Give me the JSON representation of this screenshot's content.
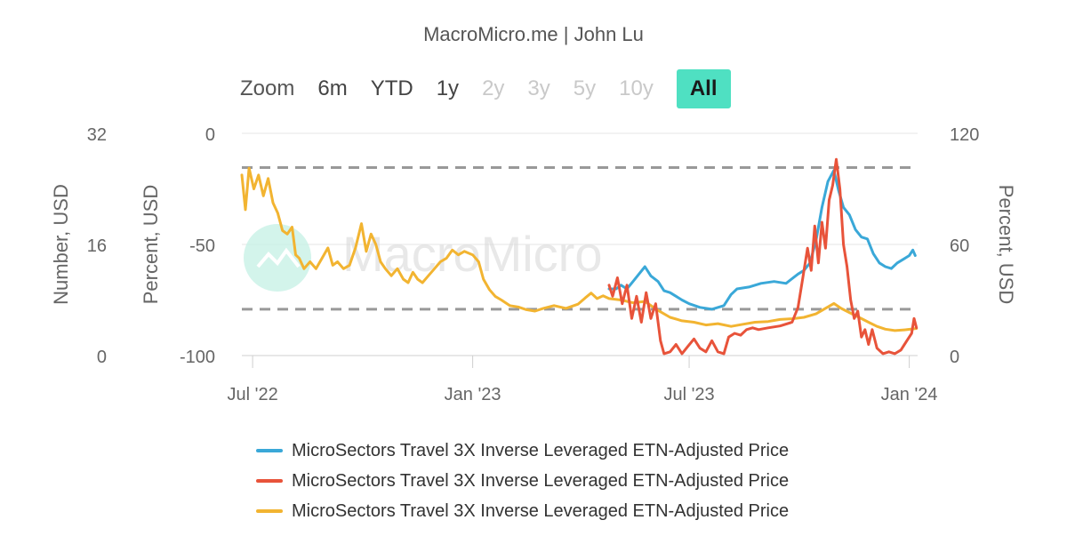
{
  "header": {
    "credit": "MacroMicro.me | John Lu"
  },
  "zoom": {
    "label": "Zoom",
    "buttons": [
      {
        "label": "6m",
        "state": "enabled"
      },
      {
        "label": "YTD",
        "state": "enabled"
      },
      {
        "label": "1y",
        "state": "enabled"
      },
      {
        "label": "2y",
        "state": "disabled"
      },
      {
        "label": "3y",
        "state": "disabled"
      },
      {
        "label": "5y",
        "state": "disabled"
      },
      {
        "label": "10y",
        "state": "disabled"
      },
      {
        "label": "All",
        "state": "active"
      }
    ]
  },
  "watermark": {
    "text": "MacroMicro"
  },
  "colors": {
    "blue": "#3aa8d8",
    "red": "#e8533a",
    "yellow": "#f2b431",
    "grid": "#e6e6e6",
    "dashed": "#999999",
    "accent": "#4fe0c2"
  },
  "chart_data": {
    "type": "line",
    "x_ticks": [
      "Jul '22",
      "Jan '23",
      "Jul '23",
      "Jan '24"
    ],
    "x_tick_dates": [
      "2022-07-01",
      "2023-01-01",
      "2023-07-01",
      "2024-01-01"
    ],
    "x_range": [
      "2022-06-22",
      "2024-01-08"
    ],
    "axes": {
      "left_outer": {
        "title": "Number, USD",
        "range": [
          0,
          32
        ],
        "ticks": [
          32,
          16,
          0
        ]
      },
      "left_inner": {
        "title": "Percent, USD",
        "range": [
          -100,
          0
        ],
        "ticks": [
          0,
          -50,
          -100
        ]
      },
      "right": {
        "title": "Percent, USD",
        "range": [
          0,
          120
        ],
        "ticks": [
          120,
          60,
          0
        ]
      }
    },
    "dashed_lines": [
      {
        "axis": "right",
        "value": 101.5
      },
      {
        "axis": "right",
        "value": 25
      }
    ],
    "series": [
      {
        "name": "MicroSectors Travel 3X Inverse Leveraged ETN-Adjusted Price",
        "color": "#3aa8d8",
        "axis": "right",
        "points": [
          [
            "2023-04-25",
            36
          ],
          [
            "2023-05-01",
            36
          ],
          [
            "2023-05-05",
            38
          ],
          [
            "2023-05-10",
            36
          ],
          [
            "2023-05-15",
            40
          ],
          [
            "2023-05-20",
            44
          ],
          [
            "2023-05-25",
            48
          ],
          [
            "2023-05-30",
            43
          ],
          [
            "2023-06-05",
            40
          ],
          [
            "2023-06-10",
            35
          ],
          [
            "2023-06-15",
            34
          ],
          [
            "2023-06-20",
            32
          ],
          [
            "2023-06-25",
            30
          ],
          [
            "2023-07-01",
            28
          ],
          [
            "2023-07-10",
            26
          ],
          [
            "2023-07-20",
            25
          ],
          [
            "2023-07-30",
            27
          ],
          [
            "2023-08-05",
            33
          ],
          [
            "2023-08-10",
            36
          ],
          [
            "2023-08-20",
            37
          ],
          [
            "2023-08-30",
            39
          ],
          [
            "2023-09-10",
            40
          ],
          [
            "2023-09-20",
            39
          ],
          [
            "2023-09-30",
            44
          ],
          [
            "2023-10-05",
            46
          ],
          [
            "2023-10-10",
            50
          ],
          [
            "2023-10-15",
            62
          ],
          [
            "2023-10-20",
            80
          ],
          [
            "2023-10-25",
            94
          ],
          [
            "2023-10-30",
            100
          ],
          [
            "2023-11-03",
            89
          ],
          [
            "2023-11-07",
            80
          ],
          [
            "2023-11-12",
            76
          ],
          [
            "2023-11-17",
            68
          ],
          [
            "2023-11-22",
            64
          ],
          [
            "2023-11-27",
            63
          ],
          [
            "2023-12-02",
            55
          ],
          [
            "2023-12-07",
            50
          ],
          [
            "2023-12-12",
            48
          ],
          [
            "2023-12-17",
            47
          ],
          [
            "2023-12-22",
            50
          ],
          [
            "2023-12-27",
            52
          ],
          [
            "2024-01-01",
            54
          ],
          [
            "2024-01-04",
            57
          ],
          [
            "2024-01-06",
            54
          ]
        ]
      },
      {
        "name": "MicroSectors Travel 3X Inverse Leveraged ETN-Adjusted Price",
        "color": "#e8533a",
        "axis": "right",
        "points": [
          [
            "2023-04-25",
            38
          ],
          [
            "2023-04-28",
            32
          ],
          [
            "2023-05-02",
            42
          ],
          [
            "2023-05-06",
            28
          ],
          [
            "2023-05-10",
            38
          ],
          [
            "2023-05-14",
            20
          ],
          [
            "2023-05-18",
            32
          ],
          [
            "2023-05-22",
            18
          ],
          [
            "2023-05-26",
            34
          ],
          [
            "2023-05-30",
            20
          ],
          [
            "2023-06-03",
            28
          ],
          [
            "2023-06-07",
            8
          ],
          [
            "2023-06-10",
            1
          ],
          [
            "2023-06-15",
            2
          ],
          [
            "2023-06-20",
            6
          ],
          [
            "2023-06-25",
            1
          ],
          [
            "2023-06-30",
            5
          ],
          [
            "2023-07-05",
            9
          ],
          [
            "2023-07-10",
            4
          ],
          [
            "2023-07-15",
            2
          ],
          [
            "2023-07-20",
            8
          ],
          [
            "2023-07-25",
            2
          ],
          [
            "2023-07-30",
            1
          ],
          [
            "2023-08-03",
            10
          ],
          [
            "2023-08-08",
            12
          ],
          [
            "2023-08-13",
            11
          ],
          [
            "2023-08-18",
            14
          ],
          [
            "2023-08-23",
            15
          ],
          [
            "2023-08-28",
            14
          ],
          [
            "2023-09-05",
            15
          ],
          [
            "2023-09-15",
            16
          ],
          [
            "2023-09-25",
            18
          ],
          [
            "2023-09-30",
            26
          ],
          [
            "2023-10-04",
            42
          ],
          [
            "2023-10-08",
            58
          ],
          [
            "2023-10-11",
            46
          ],
          [
            "2023-10-14",
            70
          ],
          [
            "2023-10-17",
            50
          ],
          [
            "2023-10-20",
            72
          ],
          [
            "2023-10-23",
            58
          ],
          [
            "2023-10-26",
            84
          ],
          [
            "2023-10-29",
            92
          ],
          [
            "2023-11-01",
            106
          ],
          [
            "2023-11-04",
            90
          ],
          [
            "2023-11-07",
            60
          ],
          [
            "2023-11-10",
            48
          ],
          [
            "2023-11-13",
            30
          ],
          [
            "2023-11-16",
            20
          ],
          [
            "2023-11-19",
            24
          ],
          [
            "2023-11-22",
            10
          ],
          [
            "2023-11-25",
            14
          ],
          [
            "2023-11-28",
            6
          ],
          [
            "2023-12-01",
            14
          ],
          [
            "2023-12-05",
            4
          ],
          [
            "2023-12-10",
            1
          ],
          [
            "2023-12-15",
            2
          ],
          [
            "2023-12-20",
            1
          ],
          [
            "2023-12-25",
            3
          ],
          [
            "2023-12-30",
            8
          ],
          [
            "2024-01-03",
            12
          ],
          [
            "2024-01-05",
            20
          ],
          [
            "2024-01-07",
            15
          ]
        ]
      },
      {
        "name": "MicroSectors Travel 3X Inverse Leveraged ETN-Adjusted Price",
        "color": "#f2b431",
        "axis": "left_outer",
        "points": [
          [
            "2022-06-22",
            26
          ],
          [
            "2022-06-25",
            21
          ],
          [
            "2022-06-28",
            27
          ],
          [
            "2022-07-02",
            24
          ],
          [
            "2022-07-06",
            26
          ],
          [
            "2022-07-10",
            23
          ],
          [
            "2022-07-14",
            25.5
          ],
          [
            "2022-07-18",
            22
          ],
          [
            "2022-07-22",
            20.5
          ],
          [
            "2022-07-26",
            18
          ],
          [
            "2022-07-30",
            17.5
          ],
          [
            "2022-08-03",
            18.5
          ],
          [
            "2022-08-06",
            14.5
          ],
          [
            "2022-08-09",
            14
          ],
          [
            "2022-08-13",
            12.5
          ],
          [
            "2022-08-18",
            13.5
          ],
          [
            "2022-08-23",
            12.5
          ],
          [
            "2022-08-28",
            14
          ],
          [
            "2022-09-02",
            15.5
          ],
          [
            "2022-09-06",
            13
          ],
          [
            "2022-09-10",
            13.5
          ],
          [
            "2022-09-15",
            12.5
          ],
          [
            "2022-09-20",
            13
          ],
          [
            "2022-09-25",
            15.5
          ],
          [
            "2022-09-30",
            19
          ],
          [
            "2022-10-04",
            15
          ],
          [
            "2022-10-08",
            17.5
          ],
          [
            "2022-10-12",
            16
          ],
          [
            "2022-10-16",
            13.5
          ],
          [
            "2022-10-20",
            12.5
          ],
          [
            "2022-10-25",
            11.5
          ],
          [
            "2022-10-30",
            12.5
          ],
          [
            "2022-11-04",
            11
          ],
          [
            "2022-11-08",
            10.5
          ],
          [
            "2022-11-12",
            12
          ],
          [
            "2022-11-16",
            11
          ],
          [
            "2022-11-20",
            10.5
          ],
          [
            "2022-11-25",
            11.5
          ],
          [
            "2022-11-30",
            12.5
          ],
          [
            "2022-12-05",
            13.5
          ],
          [
            "2022-12-10",
            14
          ],
          [
            "2022-12-15",
            15.2
          ],
          [
            "2022-12-20",
            14.5
          ],
          [
            "2022-12-25",
            15
          ],
          [
            "2023-01-01",
            14.5
          ],
          [
            "2023-01-06",
            13.5
          ],
          [
            "2023-01-10",
            11
          ],
          [
            "2023-01-15",
            9.5
          ],
          [
            "2023-01-20",
            8.5
          ],
          [
            "2023-01-25",
            8
          ],
          [
            "2023-02-01",
            7.2
          ],
          [
            "2023-02-08",
            7
          ],
          [
            "2023-02-15",
            6.6
          ],
          [
            "2023-02-22",
            6.4
          ],
          [
            "2023-03-01",
            6.8
          ],
          [
            "2023-03-10",
            7.2
          ],
          [
            "2023-03-20",
            6.8
          ],
          [
            "2023-03-30",
            7.4
          ],
          [
            "2023-04-05",
            8.3
          ],
          [
            "2023-04-10",
            9
          ],
          [
            "2023-04-15",
            8.2
          ],
          [
            "2023-04-20",
            8.6
          ],
          [
            "2023-04-25",
            8.2
          ],
          [
            "2023-05-05",
            8
          ],
          [
            "2023-05-15",
            7.6
          ],
          [
            "2023-05-25",
            7.8
          ],
          [
            "2023-06-05",
            6.5
          ],
          [
            "2023-06-15",
            5.5
          ],
          [
            "2023-06-25",
            5
          ],
          [
            "2023-07-05",
            4.8
          ],
          [
            "2023-07-15",
            4.4
          ],
          [
            "2023-07-25",
            4.6
          ],
          [
            "2023-08-05",
            4.2
          ],
          [
            "2023-08-15",
            4.5
          ],
          [
            "2023-08-25",
            4.8
          ],
          [
            "2023-09-05",
            4.9
          ],
          [
            "2023-09-15",
            5.2
          ],
          [
            "2023-09-25",
            5.3
          ],
          [
            "2023-10-05",
            5.5
          ],
          [
            "2023-10-15",
            6
          ],
          [
            "2023-10-25",
            7
          ],
          [
            "2023-10-30",
            7.5
          ],
          [
            "2023-11-05",
            6.8
          ],
          [
            "2023-11-12",
            6.2
          ],
          [
            "2023-11-20",
            5.5
          ],
          [
            "2023-11-28",
            4.8
          ],
          [
            "2023-12-05",
            4.2
          ],
          [
            "2023-12-12",
            3.8
          ],
          [
            "2023-12-20",
            3.6
          ],
          [
            "2023-12-28",
            3.7
          ],
          [
            "2024-01-07",
            3.9
          ]
        ]
      }
    ]
  },
  "legend": {
    "items": [
      {
        "label": "MicroSectors Travel 3X Inverse Leveraged ETN-Adjusted Price",
        "color": "#3aa8d8"
      },
      {
        "label": "MicroSectors Travel 3X Inverse Leveraged ETN-Adjusted Price",
        "color": "#e8533a"
      },
      {
        "label": "MicroSectors Travel 3X Inverse Leveraged ETN-Adjusted Price",
        "color": "#f2b431"
      }
    ]
  }
}
